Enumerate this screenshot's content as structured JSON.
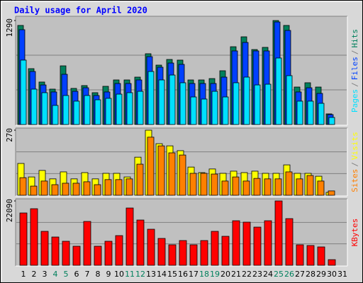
{
  "title": "Daily usage for April 2020",
  "legend_separator": "/",
  "weekend_color": "#00805c",
  "weekends": [
    "4",
    "5",
    "11",
    "12",
    "18",
    "19",
    "25",
    "26"
  ],
  "chart_data": [
    {
      "type": "bar",
      "ylim": [
        0,
        1290
      ],
      "yticks": [
        1290
      ],
      "series": [
        {
          "name": "Hits",
          "color": "#00805c",
          "values": [
            1229,
            693,
            527,
            439,
            728,
            448,
            483,
            395,
            474,
            553,
            553,
            588,
            878,
            737,
            807,
            799,
            553,
            553,
            570,
            667,
            965,
            1088,
            930,
            957,
            1290,
            1229,
            465,
            518,
            465,
            132,
            0
          ]
        },
        {
          "name": "Files",
          "color": "#0040ff",
          "values": [
            1176,
            658,
            491,
            404,
            623,
            412,
            456,
            360,
            404,
            509,
            509,
            553,
            842,
            711,
            763,
            746,
            509,
            509,
            509,
            588,
            913,
            1018,
            913,
            913,
            1272,
            1167,
            404,
            456,
            386,
            123,
            0
          ]
        },
        {
          "name": "Pages",
          "color": "#00e0ff",
          "values": [
            799,
            439,
            395,
            237,
            360,
            290,
            360,
            307,
            325,
            377,
            395,
            412,
            658,
            553,
            614,
            518,
            342,
            316,
            412,
            342,
            518,
            588,
            491,
            500,
            825,
            606,
            290,
            290,
            263,
            88,
            0
          ]
        }
      ]
    },
    {
      "type": "bar",
      "ylim": [
        0,
        270
      ],
      "yticks": [
        270
      ],
      "series": [
        {
          "name": "Visits",
          "color": "#ffff00",
          "values": [
            132,
            76,
            103,
            68,
            97,
            68,
            94,
            68,
            91,
            91,
            76,
            158,
            270,
            214,
            205,
            185,
            117,
            94,
            109,
            91,
            100,
            94,
            100,
            91,
            91,
            126,
            91,
            91,
            79,
            12,
            0
          ]
        },
        {
          "name": "Sites",
          "color": "#ff8000",
          "values": [
            73,
            38,
            59,
            44,
            50,
            50,
            56,
            44,
            65,
            65,
            68,
            129,
            241,
            205,
            176,
            167,
            91,
            91,
            88,
            59,
            76,
            59,
            70,
            68,
            68,
            97,
            68,
            82,
            59,
            18,
            0
          ]
        }
      ]
    },
    {
      "type": "bar",
      "ylim": [
        0,
        22090
      ],
      "yticks": [
        22090
      ],
      "categories": [
        "1",
        "2",
        "3",
        "4",
        "5",
        "6",
        "7",
        "8",
        "9",
        "10",
        "11",
        "12",
        "13",
        "14",
        "15",
        "16",
        "17",
        "18",
        "19",
        "20",
        "21",
        "22",
        "23",
        "24",
        "25",
        "26",
        "27",
        "28",
        "29",
        "30",
        "31"
      ],
      "series": [
        {
          "name": "KBytes",
          "color": "#ff0000",
          "values": [
            17963,
            19420,
            11652,
            9710,
            8253,
            6554,
            15050,
            6554,
            8253,
            10195,
            19662,
            15536,
            12380,
            9224,
            7040,
            8496,
            7040,
            8496,
            11652,
            9953,
            15293,
            14807,
            13108,
            15293,
            22090,
            16021,
            7040,
            6797,
            6311,
            1942,
            0
          ]
        }
      ]
    }
  ]
}
